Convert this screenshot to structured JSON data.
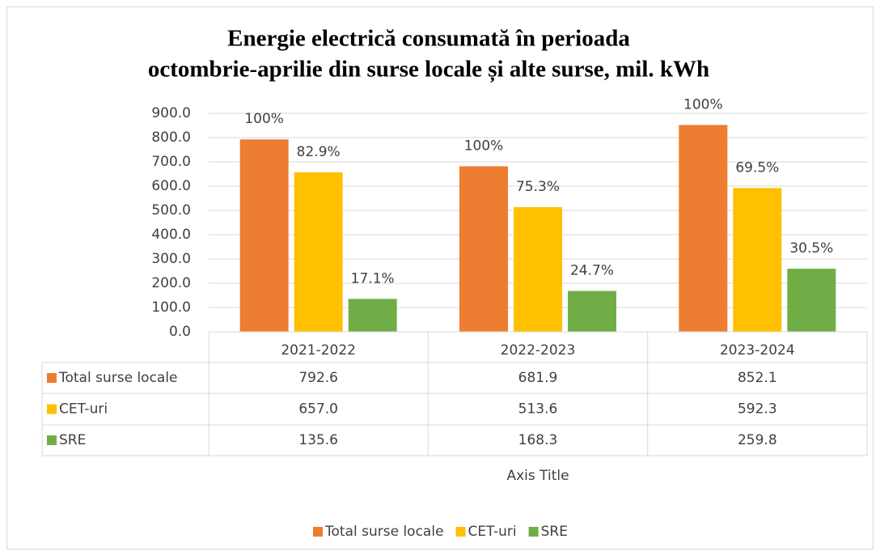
{
  "chart_data": {
    "type": "bar",
    "title": [
      "Energie electrică consumată în perioada",
      "octombrie-aprilie din surse locale și alte surse, mil. kWh"
    ],
    "x_label": "Axis Title",
    "categories": [
      "2021-2022",
      "2022-2023",
      "2023-2024"
    ],
    "series": [
      {
        "name": "Total surse locale",
        "color": "#ED7D31",
        "values": [
          792.6,
          681.9,
          852.1
        ],
        "value_labels": [
          "792.6",
          "681.9",
          "852.1"
        ],
        "share_labels": [
          "100%",
          "100%",
          "100%"
        ]
      },
      {
        "name": "CET-uri",
        "color": "#FFC000",
        "values": [
          657.0,
          513.6,
          592.3
        ],
        "value_labels": [
          "657.0",
          "513.6",
          "592.3"
        ],
        "share_labels": [
          "82.9%",
          "75.3%",
          "69.5%"
        ]
      },
      {
        "name": "SRE",
        "color": "#70AD47",
        "values": [
          135.6,
          168.3,
          259.8
        ],
        "value_labels": [
          "135.6",
          "168.3",
          "259.8"
        ],
        "share_labels": [
          "17.1%",
          "24.7%",
          "30.5%"
        ]
      }
    ],
    "ylim": [
      0,
      900
    ],
    "yticks": [
      {
        "value": 0,
        "label": "0.0"
      },
      {
        "value": 100,
        "label": "100.0"
      },
      {
        "value": 200,
        "label": "200.0"
      },
      {
        "value": 300,
        "label": "300.0"
      },
      {
        "value": 400,
        "label": "400.0"
      },
      {
        "value": 500,
        "label": "500.0"
      },
      {
        "value": 600,
        "label": "600.0"
      },
      {
        "value": 700,
        "label": "700.0"
      },
      {
        "value": 800,
        "label": "800.0"
      },
      {
        "value": 900,
        "label": "900.0"
      }
    ],
    "grid": true,
    "legend": "bottom",
    "data_table": true
  }
}
